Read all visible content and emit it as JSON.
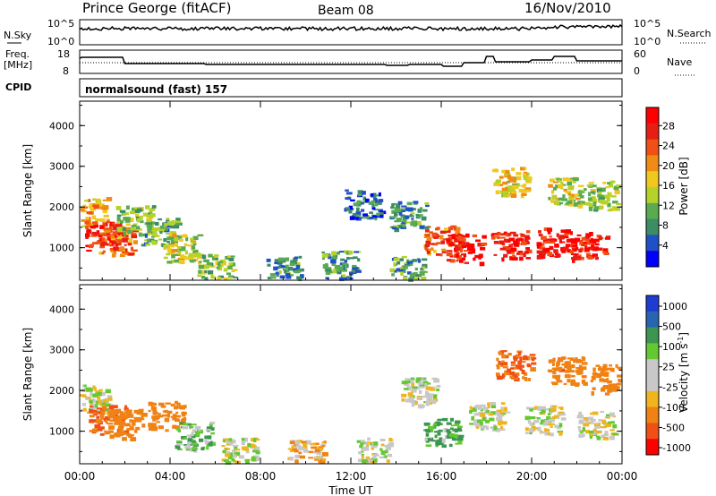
{
  "header": {
    "station": "Prince George (fitACF)",
    "beam": "Beam 08",
    "date": "16/Nov/2010"
  },
  "panels": {
    "nsky": {
      "left_label": "N.Sky",
      "right_label": "N.Search",
      "left_ticks": [
        "10^5",
        "10^0"
      ],
      "right_ticks": [
        "10^5",
        "10^0"
      ]
    },
    "freq": {
      "left_label_1": "Freq.",
      "left_label_2": "[MHz]",
      "right_label": "Nave",
      "left_ticks": [
        "18",
        "8"
      ],
      "right_ticks": [
        "60",
        "0"
      ]
    },
    "cpid": {
      "label": "CPID",
      "text": "normalsound (fast) 157"
    }
  },
  "colors": {
    "power": [
      "#0000ff",
      "#2050c8",
      "#3c8c64",
      "#5aaa50",
      "#b4d228",
      "#f0c81e",
      "#f08c14",
      "#f05014",
      "#e61e14",
      "#ff0000"
    ],
    "velocity": [
      "#1e3cd2",
      "#2864b4",
      "#3c9650",
      "#64c832",
      "#c8c8c8",
      "#c8c8c8",
      "#f0b41e",
      "#f08214",
      "#f05014",
      "#ff0000"
    ]
  },
  "chart_data": [
    {
      "type": "heatmap",
      "quantity": "Power",
      "ylabel": "Slant Range [km]",
      "ylim": [
        200,
        4600
      ],
      "xlim": [
        0,
        24
      ],
      "y_ticks": [
        "1000",
        "2000",
        "3000",
        "4000"
      ],
      "colorbar_label": "Power [dB]",
      "colorbar_ticks": [
        "4",
        "8",
        "12",
        "16",
        "20",
        "24",
        "28"
      ],
      "regions": [
        {
          "x": 0.4,
          "y": 1900,
          "value": 18
        },
        {
          "x": 1.0,
          "y": 1300,
          "value": 26
        },
        {
          "x": 1.6,
          "y": 1200,
          "value": 22
        },
        {
          "x": 2.4,
          "y": 1700,
          "value": 12
        },
        {
          "x": 3.5,
          "y": 1400,
          "value": 10
        },
        {
          "x": 4.5,
          "y": 1000,
          "value": 14
        },
        {
          "x": 6.0,
          "y": 500,
          "value": 12
        },
        {
          "x": 9.0,
          "y": 450,
          "value": 8
        },
        {
          "x": 11.5,
          "y": 600,
          "value": 8
        },
        {
          "x": 14.5,
          "y": 450,
          "value": 10
        },
        {
          "x": 16.0,
          "y": 1200,
          "value": 22
        },
        {
          "x": 17.0,
          "y": 1000,
          "value": 26
        },
        {
          "x": 19.0,
          "y": 1100,
          "value": 26
        },
        {
          "x": 21.0,
          "y": 1150,
          "value": 27
        },
        {
          "x": 22.5,
          "y": 1050,
          "value": 26
        },
        {
          "x": 19.0,
          "y": 2650,
          "value": 16
        },
        {
          "x": 21.5,
          "y": 2400,
          "value": 14
        },
        {
          "x": 23.2,
          "y": 2300,
          "value": 12
        },
        {
          "x": 12.5,
          "y": 2100,
          "value": 6
        },
        {
          "x": 14.5,
          "y": 1800,
          "value": 8
        }
      ]
    },
    {
      "type": "heatmap",
      "quantity": "Velocity",
      "ylabel": "Slant Range [km]",
      "ylim": [
        200,
        4600
      ],
      "xlim": [
        0,
        24
      ],
      "xlabel": "Time UT",
      "y_ticks": [
        "1000",
        "2000",
        "3000",
        "4000"
      ],
      "x_ticks": [
        "00:00",
        "04:00",
        "08:00",
        "12:00",
        "16:00",
        "20:00",
        "00:00"
      ],
      "colorbar_label": "Velocity [m s",
      "colorbar_label_sup": "-1",
      "colorbar_label_end": "]",
      "colorbar_ticks": [
        "1000",
        "500",
        "100",
        "25",
        "-25",
        "-100",
        "-500",
        "-1000"
      ],
      "regions": [
        {
          "x": 0.5,
          "y": 1800,
          "value": 0
        },
        {
          "x": 1.2,
          "y": 1300,
          "value": -300
        },
        {
          "x": 2.0,
          "y": 1200,
          "value": -200
        },
        {
          "x": 3.8,
          "y": 1400,
          "value": -150
        },
        {
          "x": 5.0,
          "y": 900,
          "value": 50
        },
        {
          "x": 7.0,
          "y": 500,
          "value": 0
        },
        {
          "x": 10.0,
          "y": 450,
          "value": -60
        },
        {
          "x": 13.0,
          "y": 500,
          "value": 0
        },
        {
          "x": 15.0,
          "y": 2000,
          "value": 0
        },
        {
          "x": 16.0,
          "y": 1000,
          "value": 80
        },
        {
          "x": 18.0,
          "y": 1400,
          "value": 0
        },
        {
          "x": 20.5,
          "y": 1300,
          "value": 0
        },
        {
          "x": 22.8,
          "y": 1200,
          "value": 0
        },
        {
          "x": 19.2,
          "y": 2650,
          "value": -300
        },
        {
          "x": 21.5,
          "y": 2500,
          "value": -250
        },
        {
          "x": 23.4,
          "y": 2300,
          "value": -200
        }
      ]
    }
  ]
}
